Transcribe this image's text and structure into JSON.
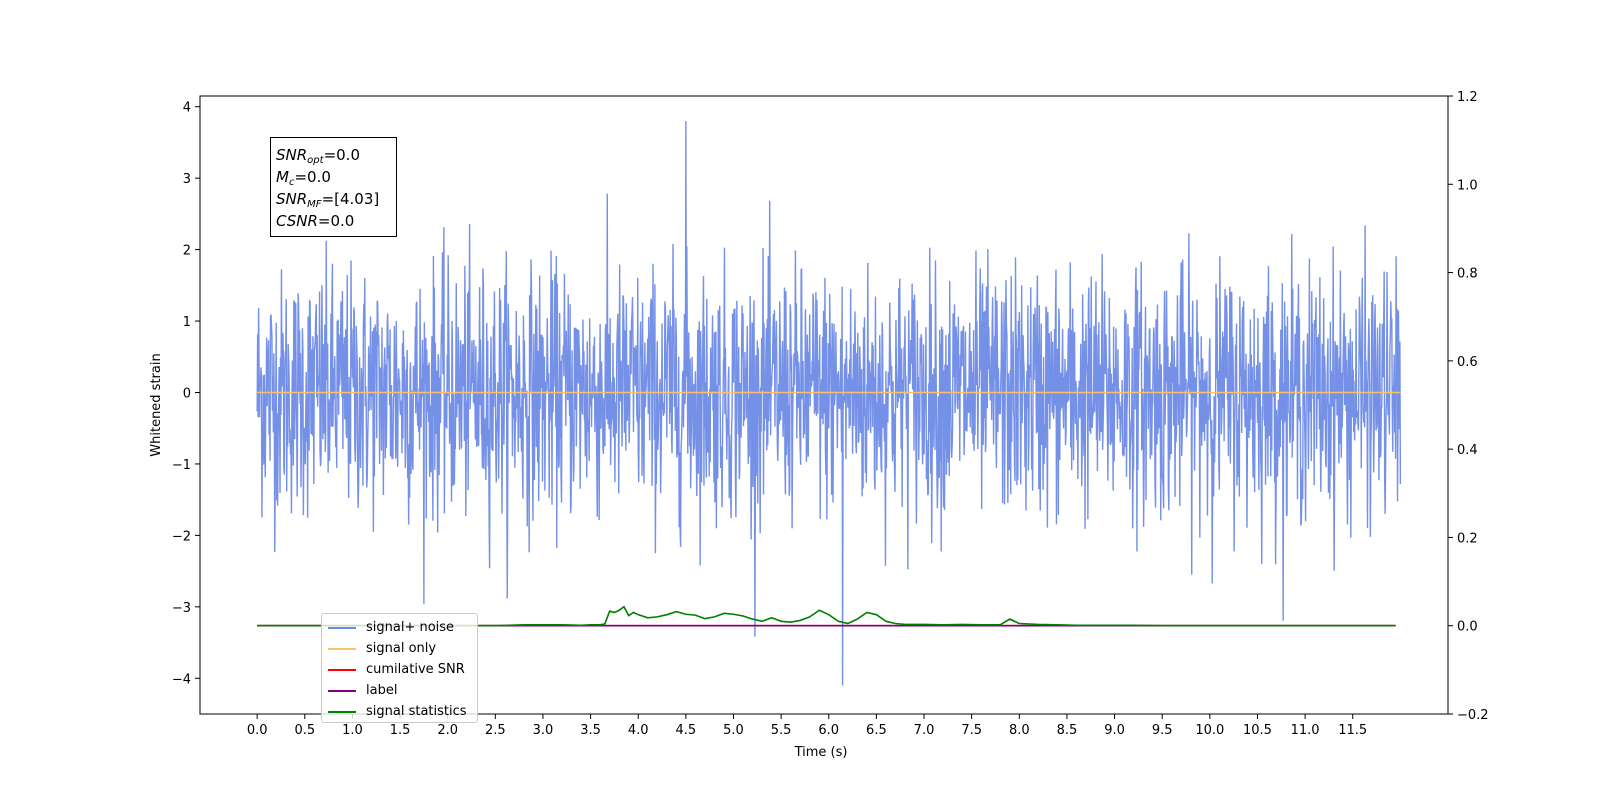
{
  "chart_data": {
    "type": "line",
    "xlabel": "Time (s)",
    "ylabel": "Whitened strain",
    "xlim": [
      -0.6,
      12.5
    ],
    "ylim": [
      -4.5,
      4.15
    ],
    "y2lim": [
      -0.2,
      1.2
    ],
    "x_ticks": [
      "0.0",
      "0.5",
      "1.0",
      "1.5",
      "2.0",
      "2.5",
      "3.0",
      "3.5",
      "4.0",
      "4.5",
      "5.0",
      "5.5",
      "6.0",
      "6.5",
      "7.0",
      "7.5",
      "8.0",
      "8.5",
      "9.0",
      "9.5",
      "10.0",
      "10.5",
      "11.0",
      "11.5"
    ],
    "y_ticks": [
      "4",
      "3",
      "2",
      "1",
      "0",
      "−1",
      "−2",
      "−3",
      "−4"
    ],
    "y2_ticks": [
      "1.2",
      "1.0",
      "0.8",
      "0.6",
      "0.4",
      "0.2",
      "0.0",
      "−0.2"
    ],
    "noise": {
      "duration": 12,
      "std": 0.85,
      "max": 3.8,
      "min": -4.1,
      "samples": 2400
    },
    "series": [
      {
        "name": "signal+ noise",
        "color": "#6d8ae6",
        "axis": "left",
        "kind": "noise"
      },
      {
        "name": "signal only",
        "color": "#f7c36a",
        "axis": "left",
        "x": [
          0,
          12
        ],
        "values": [
          0,
          0
        ]
      },
      {
        "name": "cumilative SNR",
        "color": "#ff0000",
        "axis": "right",
        "x": [
          0,
          11.95
        ],
        "values": [
          0,
          0
        ]
      },
      {
        "name": "label",
        "color": "#800080",
        "axis": "right",
        "x": [
          0,
          11.95
        ],
        "values": [
          0,
          0
        ]
      },
      {
        "name": "signal statistics",
        "color": "#008000",
        "axis": "right",
        "x": [
          0,
          2.5,
          2.8,
          3.0,
          3.2,
          3.4,
          3.5,
          3.6,
          3.65,
          3.7,
          3.75,
          3.8,
          3.85,
          3.9,
          3.95,
          4.0,
          4.1,
          4.2,
          4.3,
          4.4,
          4.5,
          4.6,
          4.7,
          4.8,
          4.9,
          5.0,
          5.1,
          5.2,
          5.3,
          5.4,
          5.5,
          5.6,
          5.7,
          5.8,
          5.9,
          6.0,
          6.1,
          6.2,
          6.3,
          6.4,
          6.5,
          6.6,
          6.7,
          6.8,
          7.0,
          7.2,
          7.4,
          7.6,
          7.8,
          7.9,
          8.0,
          8.2,
          8.4,
          8.6,
          9.0,
          9.2,
          9.5,
          11.95
        ],
        "values": [
          0,
          0,
          0.002,
          0.002,
          0.002,
          0.001,
          0.002,
          0.002,
          0.004,
          0.033,
          0.03,
          0.035,
          0.043,
          0.023,
          0.03,
          0.025,
          0.018,
          0.02,
          0.025,
          0.032,
          0.026,
          0.024,
          0.016,
          0.02,
          0.028,
          0.026,
          0.022,
          0.015,
          0.01,
          0.018,
          0.01,
          0.008,
          0.012,
          0.02,
          0.035,
          0.025,
          0.01,
          0.005,
          0.015,
          0.03,
          0.025,
          0.01,
          0.005,
          0.003,
          0.003,
          0.002,
          0.003,
          0.002,
          0.002,
          0.015,
          0.005,
          0.003,
          0.002,
          0.001,
          0.001,
          0.001,
          0,
          0
        ]
      }
    ],
    "annotation": [
      {
        "base": "SNR",
        "sub": "opt",
        "value": "=0.0"
      },
      {
        "base": "M",
        "sub": "c",
        "value": "=0.0"
      },
      {
        "base": "SNR",
        "sub": "MF",
        "value": "=[4.03]"
      },
      {
        "base": "CSNR",
        "sub": "",
        "value": "=0.0"
      }
    ],
    "legend_placement": "lower-left"
  }
}
